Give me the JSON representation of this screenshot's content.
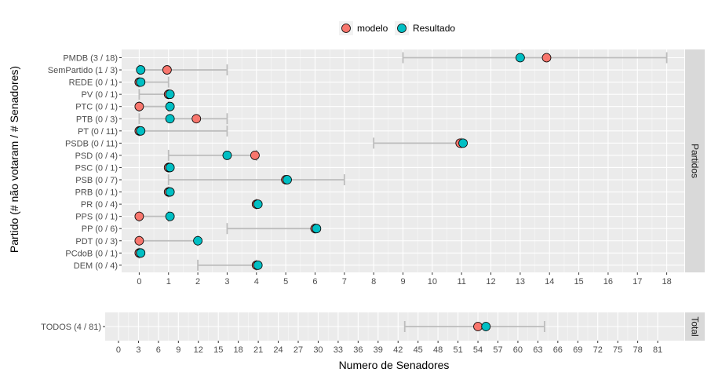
{
  "chart_data": {
    "type": "dot-range",
    "xlabel": "Numero de Senadores",
    "ylabel": "Partido (# não votaram / # Senadores)",
    "legend": {
      "position": "top",
      "entries": [
        {
          "name": "modelo",
          "color": "#F8766D"
        },
        {
          "name": "Resultado",
          "color": "#00BFC4"
        }
      ]
    },
    "grid": true,
    "colors": {
      "panel": "#ebebeb",
      "strip": "#d9d9d9",
      "grid": "#ffffff",
      "range": "#bdbdbd"
    },
    "panels": [
      {
        "strip": "Partidos",
        "xlim": [
          -0.6,
          18.6
        ],
        "xticks": [
          0,
          1,
          2,
          3,
          4,
          5,
          6,
          7,
          8,
          9,
          10,
          11,
          12,
          13,
          14,
          15,
          16,
          17,
          18
        ],
        "rows": [
          {
            "label": "PMDB (3 / 18)",
            "range": [
              9,
              18
            ],
            "modelo": 13.9,
            "resultado": 13
          },
          {
            "label": "SemPartido (1 / 3)",
            "range": [
              0,
              3
            ],
            "modelo": 0.95,
            "resultado": 0.05
          },
          {
            "label": "REDE (0 / 1)",
            "range": [
              0,
              1
            ],
            "modelo": 0,
            "resultado": 0.05
          },
          {
            "label": "PV (0 / 1)",
            "range": [
              0,
              1
            ],
            "modelo": 1,
            "resultado": 1.05
          },
          {
            "label": "PTC (0 / 1)",
            "range": [
              0,
              1
            ],
            "modelo": 0,
            "resultado": 1.05
          },
          {
            "label": "PTB (0 / 3)",
            "range": [
              0,
              3
            ],
            "modelo": 1.95,
            "resultado": 1.05
          },
          {
            "label": "PT (0 / 11)",
            "range": [
              0,
              3
            ],
            "modelo": 0,
            "resultado": 0.05
          },
          {
            "label": "PSDB (0 / 11)",
            "range": [
              8,
              11
            ],
            "modelo": 10.95,
            "resultado": 11.05
          },
          {
            "label": "PSD (0 / 4)",
            "range": [
              1,
              4
            ],
            "modelo": 3.95,
            "resultado": 3
          },
          {
            "label": "PSC (0 / 1)",
            "range": [
              1,
              1
            ],
            "modelo": 1,
            "resultado": 1.05
          },
          {
            "label": "PSB (0 / 7)",
            "range": [
              1,
              7
            ],
            "modelo": 5,
            "resultado": 5.05
          },
          {
            "label": "PRB (0 / 1)",
            "range": [
              1,
              1
            ],
            "modelo": 1,
            "resultado": 1.05
          },
          {
            "label": "PR (0 / 4)",
            "range": [
              4,
              4
            ],
            "modelo": 4,
            "resultado": 4.05
          },
          {
            "label": "PPS (0 / 1)",
            "range": [
              0,
              1
            ],
            "modelo": 0,
            "resultado": 1.05
          },
          {
            "label": "PP (0 / 6)",
            "range": [
              3,
              6
            ],
            "modelo": 6,
            "resultado": 6.05
          },
          {
            "label": "PDT (0 / 3)",
            "range": [
              0,
              2
            ],
            "modelo": 0,
            "resultado": 2
          },
          {
            "label": "PCdoB (0 / 1)",
            "range": [
              0,
              0
            ],
            "modelo": 0,
            "resultado": 0.05
          },
          {
            "label": "DEM (0 / 4)",
            "range": [
              2,
              4
            ],
            "modelo": 4,
            "resultado": 4.05
          }
        ]
      },
      {
        "strip": "Total",
        "xlim": [
          -2,
          85
        ],
        "xticks": [
          0,
          3,
          6,
          9,
          12,
          15,
          18,
          21,
          24,
          27,
          30,
          33,
          36,
          39,
          42,
          45,
          48,
          51,
          54,
          57,
          60,
          63,
          66,
          69,
          72,
          75,
          78,
          81
        ],
        "rows": [
          {
            "label": "TODOS (4 / 81)",
            "range": [
              43,
              64
            ],
            "modelo": 54,
            "resultado": 55.2
          }
        ]
      }
    ]
  }
}
